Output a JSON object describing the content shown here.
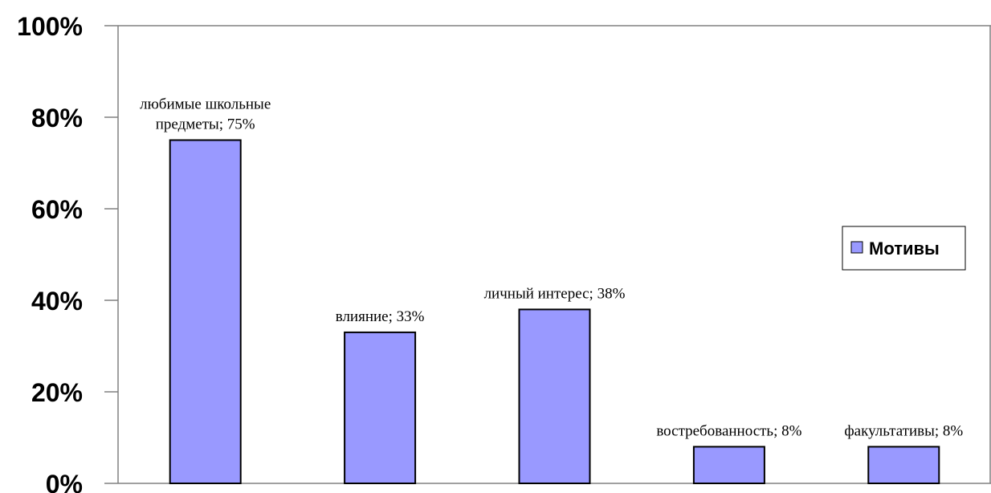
{
  "chart_data": {
    "type": "bar",
    "categories": [
      "любимые школьные предметы",
      "влияние",
      "личный интерес",
      "востребованность",
      "факультативы"
    ],
    "series": [
      {
        "name": "Мотивы",
        "values": [
          75,
          33,
          38,
          8,
          8
        ]
      }
    ],
    "data_labels": [
      [
        "любимые школьные",
        "предметы; 75%"
      ],
      [
        "влияние; 33%"
      ],
      [
        "личный интерес; 38%"
      ],
      [
        "востребованность; 8%"
      ],
      [
        "факультативы; 8%"
      ]
    ],
    "y_ticks": [
      "0%",
      "20%",
      "40%",
      "60%",
      "80%",
      "100%"
    ],
    "ylim": [
      0,
      100
    ],
    "y_unit": "%",
    "legend": {
      "label": "Мотивы",
      "position": "right"
    },
    "grid": false,
    "colors": {
      "bar_fill": "#9999ff",
      "bar_stroke": "#000000",
      "axis": "#808080"
    }
  }
}
